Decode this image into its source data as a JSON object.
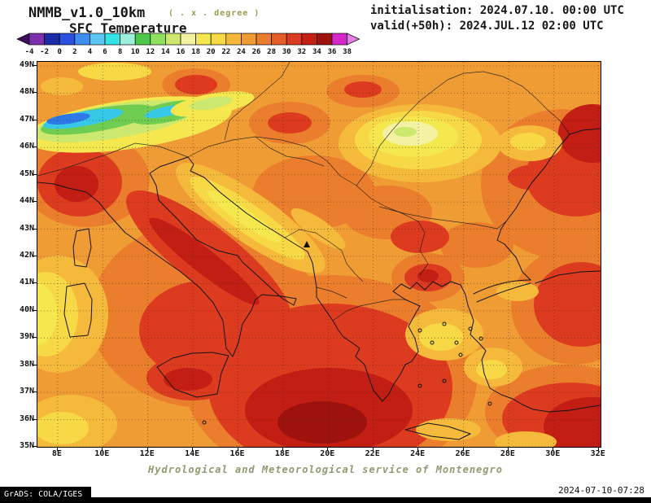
{
  "header": {
    "model": "NMMB_v1.0_10km",
    "degree_note": "( . x . degree )",
    "initialisation": "initialisation: 2024.07.10. 00:00 UTC",
    "valid": "valid(+50h): 2024.JUL.12 02:00 UTC",
    "field_title": "SFC Temperature"
  },
  "colorbar": {
    "ticks": [
      "-4",
      "-2",
      "0",
      "2",
      "4",
      "6",
      "8",
      "10",
      "12",
      "14",
      "16",
      "18",
      "20",
      "22",
      "24",
      "26",
      "28",
      "30",
      "32",
      "34",
      "36",
      "38"
    ],
    "colors": [
      "#3C0E62",
      "#7B2FA8",
      "#1C2AA8",
      "#2B50E0",
      "#3E8EF0",
      "#5BC4F0",
      "#34E3E3",
      "#9CEFD9",
      "#4CC94C",
      "#8FE05A",
      "#CDE86E",
      "#F2F2A2",
      "#F5E84E",
      "#F7D845",
      "#F5B93C",
      "#F09C35",
      "#EB7E2C",
      "#E55D26",
      "#DC3B20",
      "#C21E14",
      "#9E120E",
      "#D428C8",
      "#E87AE8"
    ]
  },
  "map": {
    "lat_labels": [
      "49N",
      "48N",
      "47N",
      "46N",
      "45N",
      "44N",
      "43N",
      "42N",
      "41N",
      "40N",
      "39N",
      "38N",
      "37N",
      "36N",
      "35N"
    ],
    "lon_labels": [
      "8E",
      "10E",
      "12E",
      "14E",
      "16E",
      "18E",
      "20E",
      "22E",
      "24E",
      "26E",
      "28E",
      "30E",
      "32E"
    ]
  },
  "footer": {
    "service": "Hydrological and Meteorological service of Montenegro",
    "grads_credit": "GrADS: COLA/IGES",
    "generated": "2024-07-10-07:28"
  }
}
